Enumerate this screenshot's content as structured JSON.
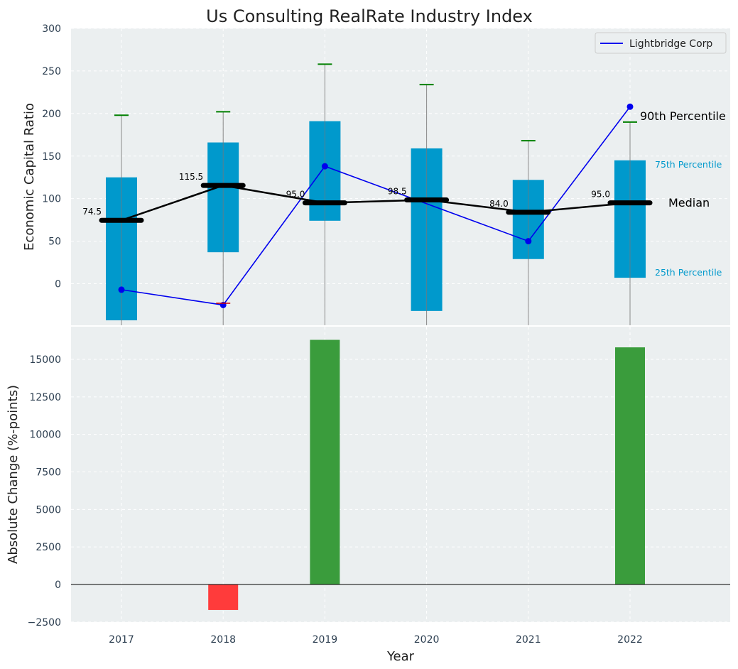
{
  "chart_data": [
    {
      "type": "box",
      "title": "Us Consulting RealRate Industry Index",
      "ylabel": "Economic Capital Ratio",
      "ylim": [
        -50,
        300
      ],
      "yticks": [
        0,
        50,
        100,
        150,
        200,
        250,
        300
      ],
      "grid": true,
      "categories": [
        "2017",
        "2018",
        "2019",
        "2020",
        "2021",
        "2022"
      ],
      "boxes": {
        "p25": [
          -43,
          37,
          74,
          -32,
          29,
          7
        ],
        "p75": [
          125,
          166,
          191,
          159,
          122,
          145
        ],
        "median": [
          74.5,
          115.5,
          95.0,
          98.5,
          84.0,
          95.0
        ],
        "median_labels": [
          "74.5",
          "115.5",
          "95.0",
          "98.5",
          "84.0",
          "95.0"
        ],
        "p90": [
          198,
          202,
          258,
          234,
          168,
          190
        ]
      },
      "company": {
        "name": "Lightbridge Corp",
        "color": "#0000ee",
        "values": [
          -7,
          -25,
          138,
          null,
          50,
          208
        ]
      },
      "legend": {
        "label": "Lightbridge Corp",
        "placement": "top-right"
      },
      "annotations": {
        "p90": "90th Percentile",
        "p75": "75th Percentile",
        "median": "Median",
        "p25": "25th Percentile"
      },
      "colors": {
        "box": "#0099cc",
        "median": "#000000",
        "p90_tick": "#008000",
        "whisker": "#888888",
        "background": "#ebeff0"
      }
    },
    {
      "type": "bar",
      "ylabel": "Absolute Change (%-points)",
      "xlabel": "Year",
      "ylim": [
        -2600,
        17000
      ],
      "yticks": [
        -2500,
        0,
        2500,
        5000,
        7500,
        10000,
        12500,
        15000
      ],
      "ytick_labels": [
        "−2500",
        "0",
        "2500",
        "5000",
        "7500",
        "10000",
        "12500",
        "15000"
      ],
      "categories": [
        "2017",
        "2018",
        "2019",
        "2020",
        "2021",
        "2022"
      ],
      "values": [
        0,
        -1700,
        16300,
        0,
        0,
        15800
      ],
      "colors": {
        "positive": "#3a9c3c",
        "negative": "#ff3b3b"
      }
    }
  ]
}
